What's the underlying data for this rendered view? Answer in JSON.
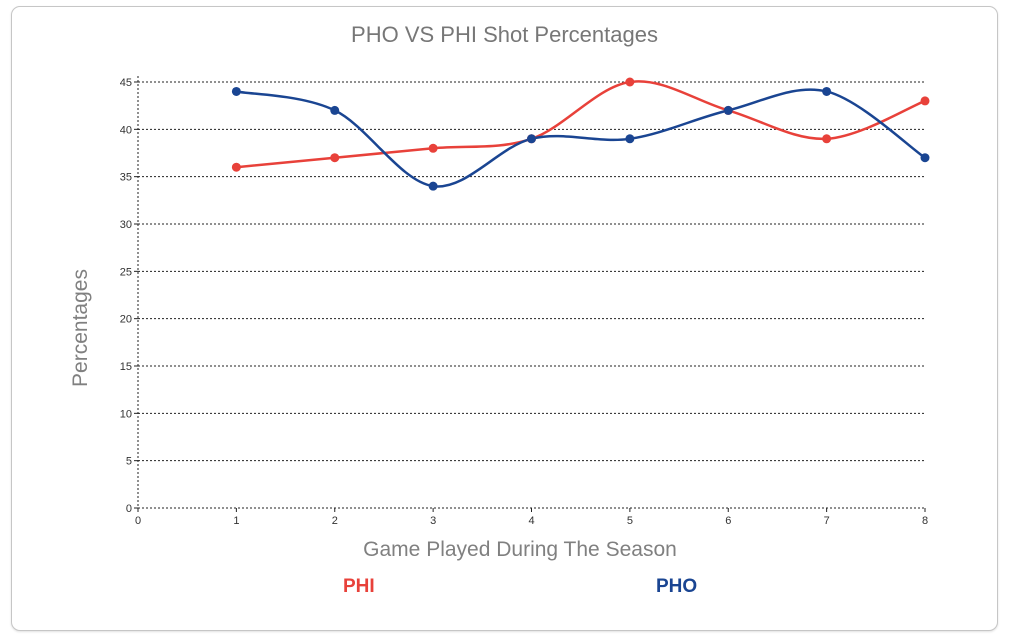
{
  "chart_data": {
    "type": "line",
    "title": "PHO VS PHI Shot Percentages",
    "xlabel": "Game Played During The Season",
    "ylabel": "Percentages",
    "x_ticks": [
      "0",
      "1",
      "2",
      "3",
      "4",
      "5",
      "6",
      "7",
      "8"
    ],
    "y_ticks": [
      "0",
      "5",
      "10",
      "15",
      "20",
      "25",
      "30",
      "35",
      "40",
      "45"
    ],
    "xlim": [
      0,
      8
    ],
    "ylim": [
      0,
      45
    ],
    "grid": true,
    "legend_position": "bottom",
    "series": [
      {
        "name": "PHI",
        "color": "#e8413a",
        "x": [
          1,
          2,
          3,
          4,
          5,
          6,
          7,
          8
        ],
        "values": [
          36,
          37,
          38,
          39,
          45,
          42,
          39,
          43
        ]
      },
      {
        "name": "PHO",
        "color": "#1a4592",
        "x": [
          1,
          2,
          3,
          4,
          5,
          6,
          7,
          8
        ],
        "values": [
          44,
          42,
          34,
          39,
          39,
          42,
          44,
          37
        ]
      }
    ]
  }
}
